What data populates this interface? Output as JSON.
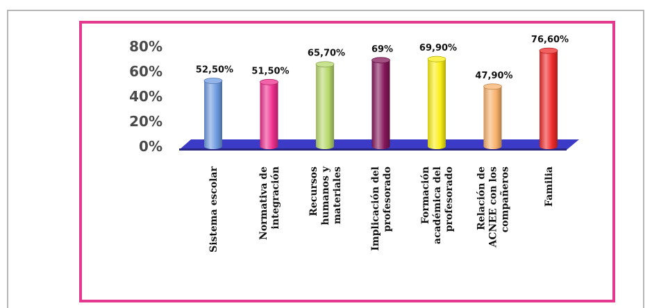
{
  "chart_data": {
    "type": "bar",
    "categories": [
      [
        "Sistema escolar"
      ],
      [
        "Normativa de",
        "integración"
      ],
      [
        "Recursos",
        "humanos y",
        "materiales"
      ],
      [
        "Implicación del",
        "profesorado"
      ],
      [
        "Formación",
        "académica del",
        "profesorado"
      ],
      [
        "Relación de",
        "ACNEE con los",
        "compañeros"
      ],
      [
        "Familia"
      ]
    ],
    "values": [
      52.5,
      51.5,
      65.7,
      69,
      69.9,
      47.9,
      76.6
    ],
    "value_labels": [
      "52,50%",
      "51,50%",
      "65,70%",
      "69%",
      "69,90%",
      "47,90%",
      "76,60%"
    ],
    "yticks": [
      "0%",
      "20%",
      "40%",
      "60%",
      "80%"
    ],
    "ylim": [
      0,
      80
    ],
    "bar_colors": [
      "#6d9be0",
      "#ee2f8e",
      "#b6d86a",
      "#84165a",
      "#f9ee16",
      "#f7b06a",
      "#ee2a2a"
    ],
    "floor_color": "#3b3bc7",
    "grid": false,
    "legend": "none",
    "frame_color": "#e3398f"
  }
}
